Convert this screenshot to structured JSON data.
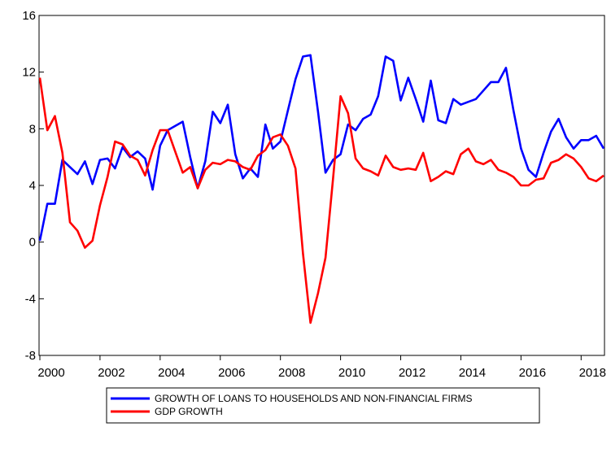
{
  "chart_data": {
    "type": "line",
    "x": [
      2000,
      2000.25,
      2000.5,
      2000.75,
      2001,
      2001.25,
      2001.5,
      2001.75,
      2002,
      2002.25,
      2002.5,
      2002.75,
      2003,
      2003.25,
      2003.5,
      2003.75,
      2004,
      2004.25,
      2004.5,
      2004.75,
      2005,
      2005.25,
      2005.5,
      2005.75,
      2006,
      2006.25,
      2006.5,
      2006.75,
      2007,
      2007.25,
      2007.5,
      2007.75,
      2008,
      2008.25,
      2008.5,
      2008.75,
      2009,
      2009.25,
      2009.5,
      2009.75,
      2010,
      2010.25,
      2010.5,
      2010.75,
      2011,
      2011.25,
      2011.5,
      2011.75,
      2012,
      2012.25,
      2012.5,
      2012.75,
      2013,
      2013.25,
      2013.5,
      2013.75,
      2014,
      2014.25,
      2014.5,
      2014.75,
      2015,
      2015.25,
      2015.5,
      2015.75,
      2016,
      2016.25,
      2016.5,
      2016.75,
      2017,
      2017.25,
      2017.5,
      2017.75,
      2018,
      2018.25,
      2018.5,
      2018.75
    ],
    "series": [
      {
        "name": "GROWTH OF LOANS TO HOUSEHOLDS AND NON-FINANCIAL FIRMS",
        "color": "#0000ff",
        "values": [
          0.1,
          2.7,
          2.7,
          5.8,
          5.3,
          4.8,
          5.7,
          4.1,
          5.8,
          5.9,
          5.2,
          6.7,
          6.0,
          6.4,
          5.9,
          3.7,
          6.8,
          7.9,
          8.2,
          8.5,
          6.0,
          3.8,
          5.7,
          9.2,
          8.4,
          9.7,
          6.2,
          4.5,
          5.2,
          4.6,
          8.3,
          6.6,
          7.1,
          9.3,
          11.5,
          13.1,
          13.2,
          9.2,
          4.9,
          5.8,
          6.2,
          8.3,
          7.9,
          8.7,
          9.0,
          10.3,
          13.1,
          12.8,
          10.0,
          11.6,
          10.1,
          8.5,
          11.4,
          8.6,
          8.4,
          10.1,
          9.7,
          9.9,
          10.1,
          10.7,
          11.3,
          11.3,
          12.3,
          9.3,
          6.6,
          5.1,
          4.6,
          6.3,
          7.8,
          8.7,
          7.4,
          6.6,
          7.2,
          7.2,
          7.5,
          6.6
        ]
      },
      {
        "name": "GDP GROWTH",
        "color": "#ff0000",
        "values": [
          11.6,
          7.9,
          8.9,
          6.3,
          1.4,
          0.8,
          -0.4,
          0.1,
          2.6,
          4.6,
          7.1,
          6.9,
          6.1,
          5.8,
          4.7,
          6.5,
          7.9,
          7.9,
          6.4,
          4.9,
          5.3,
          3.8,
          5.1,
          5.6,
          5.5,
          5.8,
          5.7,
          5.3,
          5.1,
          6.1,
          6.5,
          7.4,
          7.6,
          6.8,
          5.2,
          -0.8,
          -5.7,
          -3.6,
          -1.1,
          4.5,
          10.3,
          9.1,
          5.9,
          5.2,
          5.0,
          4.7,
          6.1,
          5.3,
          5.1,
          5.2,
          5.1,
          6.3,
          4.3,
          4.6,
          5.0,
          4.8,
          6.2,
          6.6,
          5.7,
          5.5,
          5.8,
          5.1,
          4.9,
          4.6,
          4.0,
          4.0,
          4.4,
          4.5,
          5.6,
          5.8,
          6.2,
          5.9,
          5.3,
          4.5,
          4.3,
          4.7
        ]
      }
    ],
    "xlim": [
      2000,
      2018.75
    ],
    "xticks": [
      2000,
      2002,
      2004,
      2006,
      2008,
      2010,
      2012,
      2014,
      2016,
      2018
    ],
    "ylim": [
      -8,
      16
    ],
    "yticks": [
      -8,
      -4,
      0,
      4,
      8,
      12,
      16
    ]
  }
}
